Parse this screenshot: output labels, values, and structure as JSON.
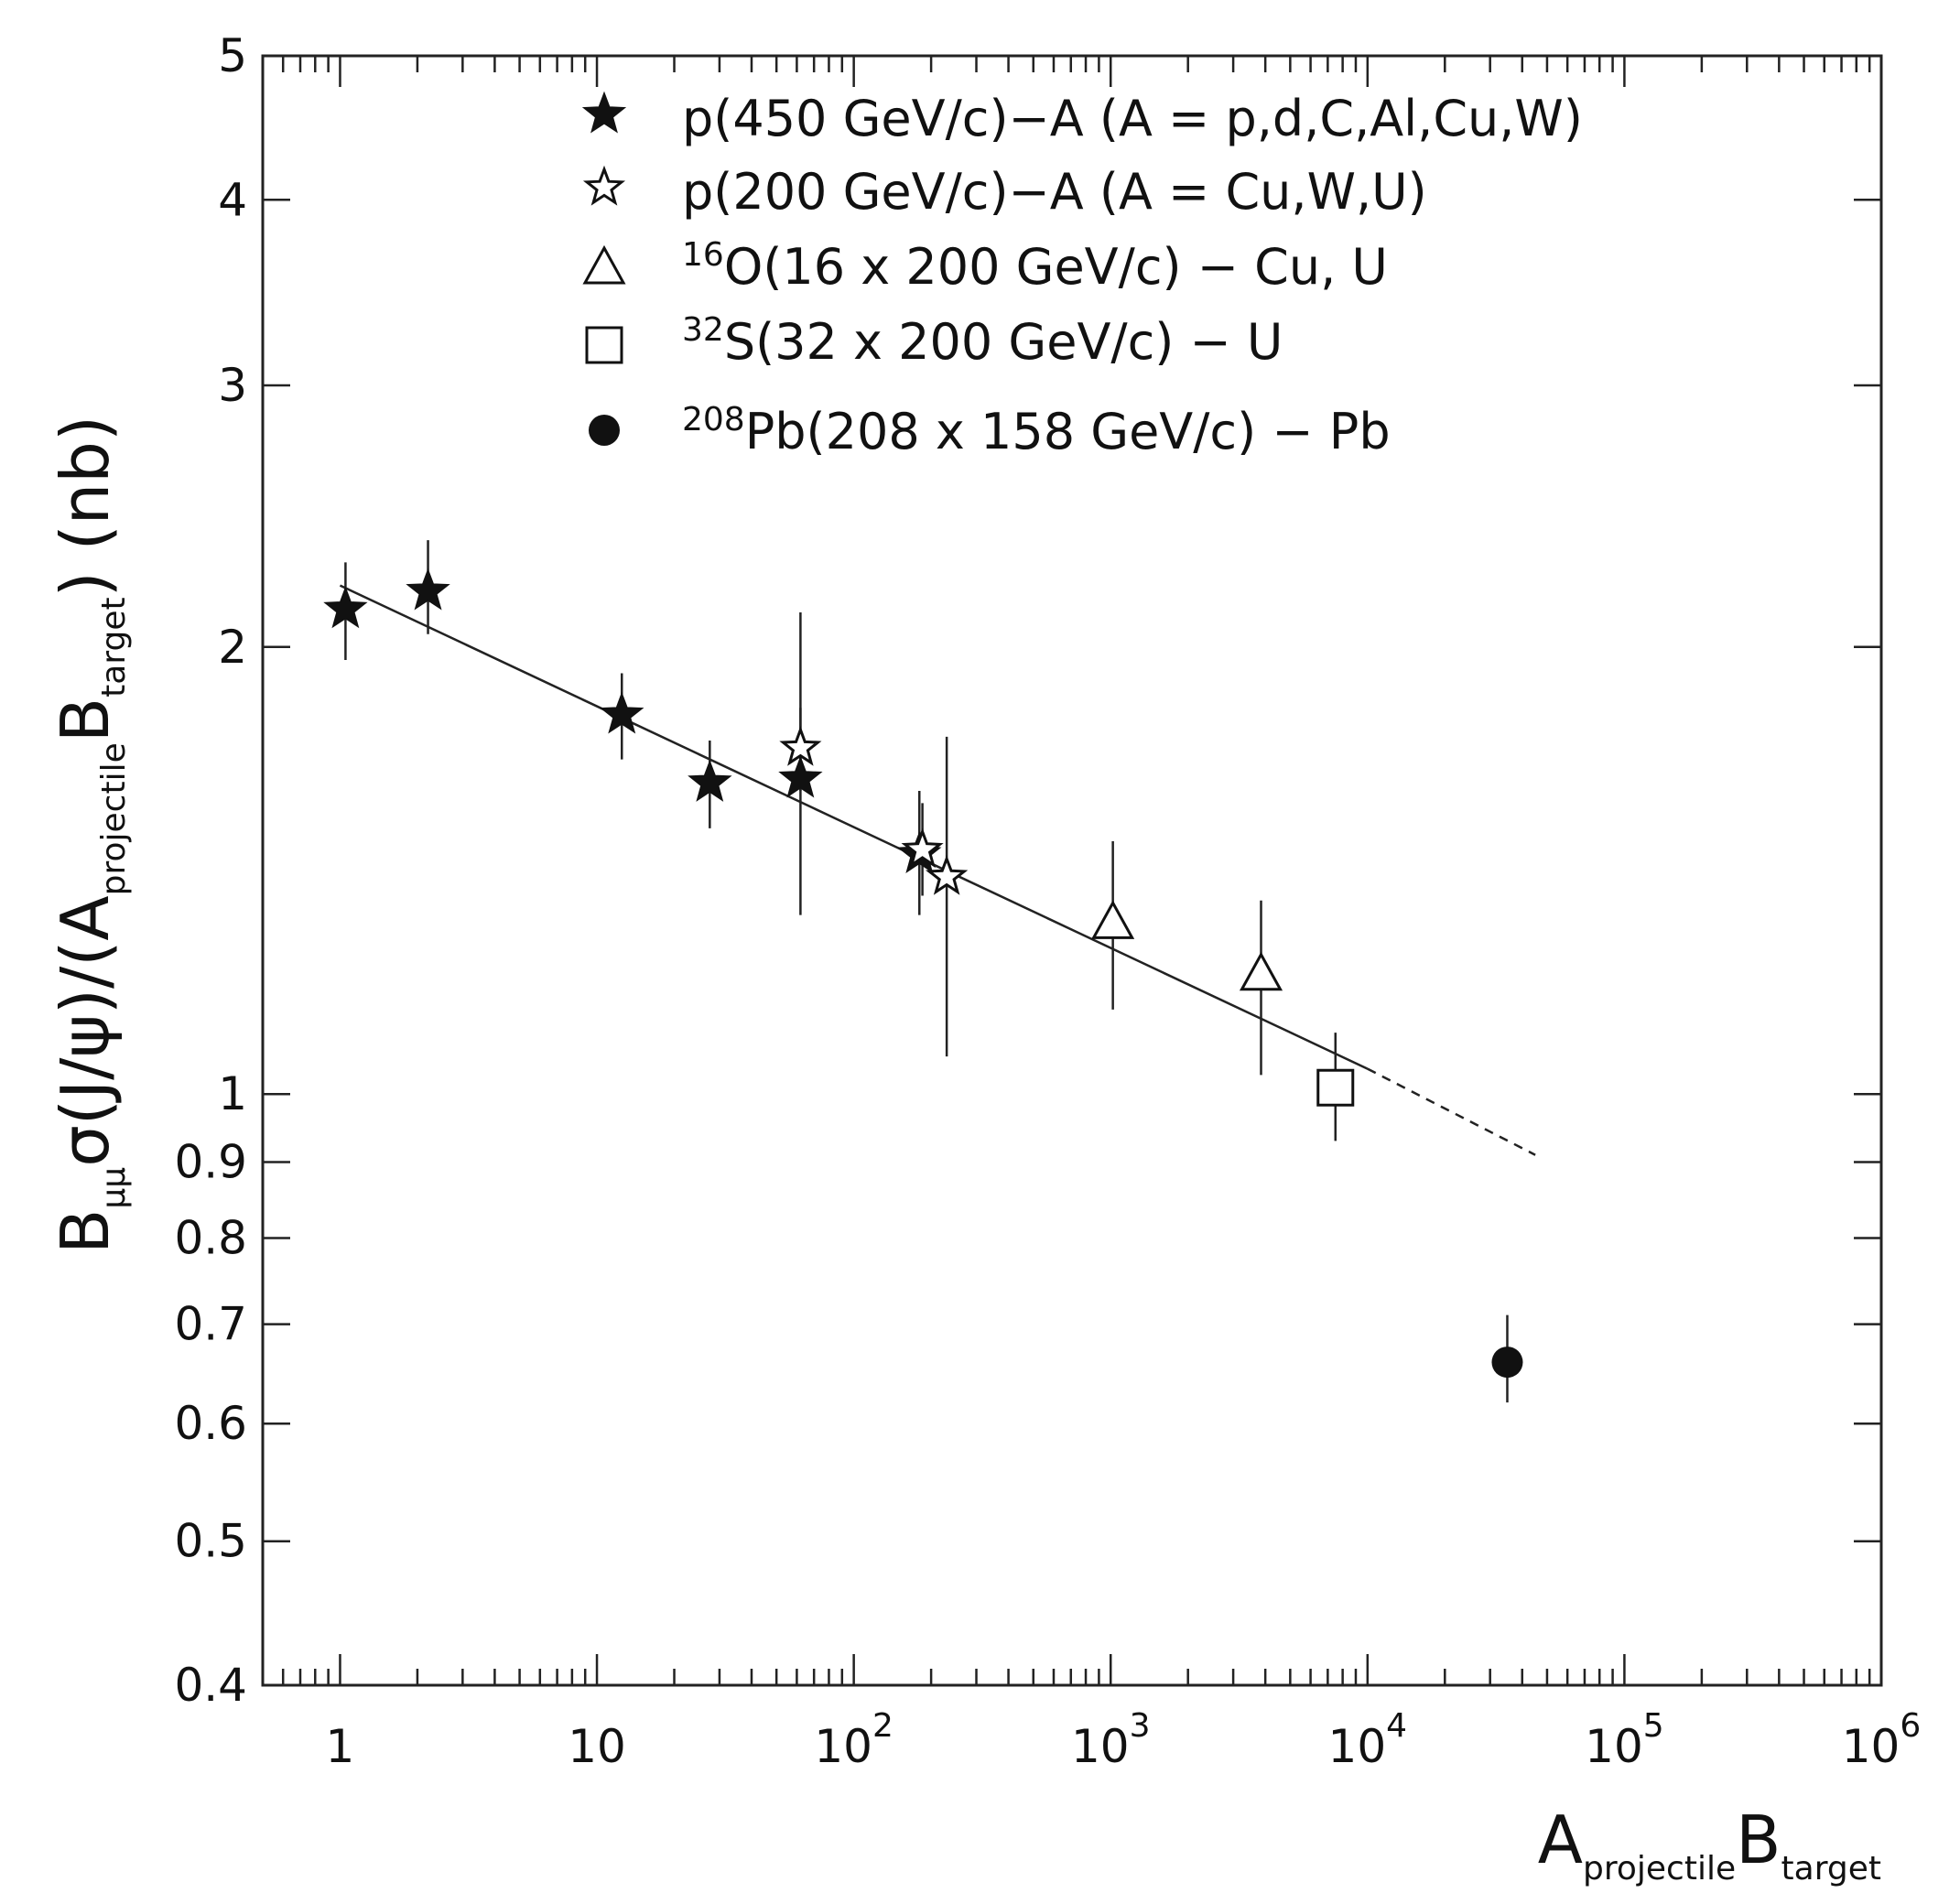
{
  "chart_data": {
    "type": "scatter",
    "title": "",
    "xscale": "log",
    "yscale": "log",
    "xlim": [
      0.5,
      1000000
    ],
    "ylim": [
      0.4,
      5
    ],
    "xlabel": {
      "main_a": "A",
      "sub_a": "projectile",
      "main_b": "B",
      "sub_b": "target"
    },
    "ylabel": {
      "b": "B",
      "b_sub": "μμ",
      "sigma": "σ(J/ψ)/(A",
      "sub_a": "projectile",
      "b2": "B",
      "sub_b": "target",
      "tail": ") (nb)"
    },
    "x_ticks": [
      {
        "value": 1,
        "base": "1",
        "exp": ""
      },
      {
        "value": 10,
        "base": "10",
        "exp": ""
      },
      {
        "value": 100,
        "base": "10",
        "exp": "2"
      },
      {
        "value": 1000,
        "base": "10",
        "exp": "3"
      },
      {
        "value": 10000,
        "base": "10",
        "exp": "4"
      },
      {
        "value": 100000,
        "base": "10",
        "exp": "5"
      },
      {
        "value": 1000000,
        "base": "10",
        "exp": "6"
      }
    ],
    "y_ticks": [
      {
        "value": 0.4,
        "label": "0.4"
      },
      {
        "value": 0.5,
        "label": "0.5"
      },
      {
        "value": 0.6,
        "label": "0.6"
      },
      {
        "value": 0.7,
        "label": "0.7"
      },
      {
        "value": 0.8,
        "label": "0.8"
      },
      {
        "value": 0.9,
        "label": "0.9"
      },
      {
        "value": 1,
        "label": "1"
      },
      {
        "value": 2,
        "label": "2"
      },
      {
        "value": 3,
        "label": "3"
      },
      {
        "value": 4,
        "label": "4"
      },
      {
        "value": 5,
        "label": "5"
      }
    ],
    "legend": [
      {
        "symbol": "filled-star",
        "sup": "",
        "text": "p(450 GeV/c)−A (A = p,d,C,Al,Cu,W)"
      },
      {
        "symbol": "open-star",
        "sup": "",
        "text": "p(200 GeV/c)−A (A = Cu,W,U)"
      },
      {
        "symbol": "open-triangle",
        "sup": "16",
        "text": "O(16 x 200 GeV/c) − Cu, U"
      },
      {
        "symbol": "open-square",
        "sup": "32",
        "text": "S(32 x 200 GeV/c) − U"
      },
      {
        "symbol": "filled-circle",
        "sup": "208",
        "text": "Pb(208 x 158 GeV/c) − Pb"
      }
    ],
    "series": [
      {
        "name": "p(450 GeV/c)-A",
        "marker": "filled-star",
        "points": [
          {
            "x": 1.05,
            "y": 2.12,
            "ylo": 1.96,
            "yhi": 2.28
          },
          {
            "x": 2.2,
            "y": 2.18,
            "ylo": 2.04,
            "yhi": 2.36
          },
          {
            "x": 12.5,
            "y": 1.8,
            "ylo": 1.68,
            "yhi": 1.92
          },
          {
            "x": 27.5,
            "y": 1.62,
            "ylo": 1.51,
            "yhi": 1.73
          },
          {
            "x": 62,
            "y": 1.63,
            "ylo": 1.32,
            "yhi": 2.11
          },
          {
            "x": 180,
            "y": 1.45,
            "ylo": 1.32,
            "yhi": 1.6
          }
        ]
      },
      {
        "name": "p(200 GeV/c)-A",
        "marker": "open-star",
        "points": [
          {
            "x": 62,
            "y": 1.71,
            "ylo": 1.6,
            "yhi": 1.82
          },
          {
            "x": 185,
            "y": 1.46,
            "ylo": 1.36,
            "yhi": 1.57
          },
          {
            "x": 230,
            "y": 1.4,
            "ylo": 1.06,
            "yhi": 1.74
          }
        ]
      },
      {
        "name": "16O(16 x 200 GeV/c) - Cu, U",
        "marker": "open-triangle",
        "points": [
          {
            "x": 1020,
            "y": 1.3,
            "ylo": 1.14,
            "yhi": 1.48
          },
          {
            "x": 3850,
            "y": 1.2,
            "ylo": 1.03,
            "yhi": 1.35
          }
        ]
      },
      {
        "name": "32S(32 x 200 GeV/c) - U",
        "marker": "open-square",
        "points": [
          {
            "x": 7500,
            "y": 1.01,
            "ylo": 0.93,
            "yhi": 1.1
          }
        ]
      },
      {
        "name": "208Pb(208 x 158 GeV/c) - Pb",
        "marker": "filled-circle",
        "points": [
          {
            "x": 35000,
            "y": 0.66,
            "ylo": 0.62,
            "yhi": 0.71
          }
        ]
      }
    ],
    "fit_line": {
      "x0": 1,
      "y0": 2.2,
      "x1": 10000,
      "y1": 1.04,
      "x_dash_end": 45000,
      "y_dash_end": 0.91
    }
  }
}
